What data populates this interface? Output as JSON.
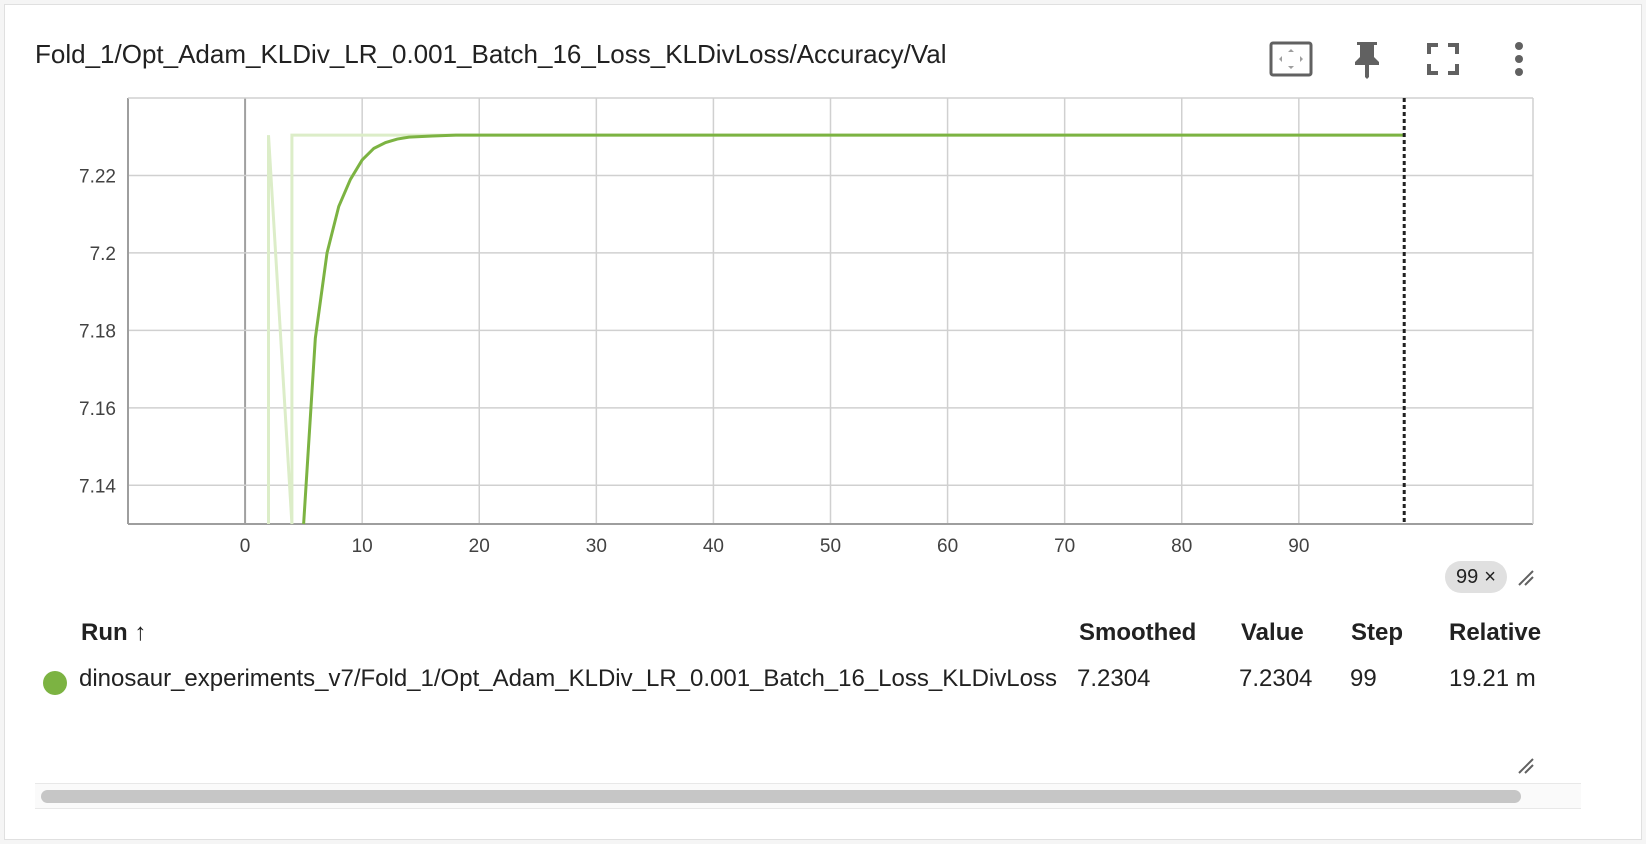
{
  "card": {
    "title": "Fold_1/Opt_Adam_KLDiv_LR_0.001_Batch_16_Loss_KLDivLoss/Accuracy/Val"
  },
  "toolbar": {
    "icons": [
      "fit-domain-icon",
      "pin-icon",
      "fullscreen-icon",
      "more-vert-icon"
    ]
  },
  "colors": {
    "series": "#7cb342",
    "series_raw": "#dcedc8",
    "grid": "#d0d0d0",
    "axis_zero": "#a0a0a0"
  },
  "chart_data": {
    "type": "line",
    "title": "",
    "xlabel": "",
    "ylabel": "",
    "xlim": [
      -10,
      110
    ],
    "ylim": [
      7.13,
      7.24
    ],
    "x_ticks": [
      "0",
      "10",
      "20",
      "30",
      "40",
      "50",
      "60",
      "70",
      "80",
      "90"
    ],
    "y_ticks": [
      "7.14",
      "7.16",
      "7.18",
      "7.2",
      "7.22"
    ],
    "grid": true,
    "series": [
      {
        "name": "dinosaur_experiments_v7/Fold_1/Opt_Adam_KLDiv_LR_0.001_Batch_16_Loss_KLDivLoss",
        "smoothed": true,
        "x": [
          5,
          6,
          7,
          8,
          9,
          10,
          11,
          12,
          13,
          14,
          16,
          18,
          20,
          30,
          40,
          50,
          60,
          70,
          80,
          90,
          99
        ],
        "y": [
          7.13,
          7.178,
          7.2,
          7.212,
          7.219,
          7.224,
          7.227,
          7.2285,
          7.2294,
          7.2299,
          7.2302,
          7.2304,
          7.2304,
          7.2304,
          7.2304,
          7.2304,
          7.2304,
          7.2304,
          7.2304,
          7.2304,
          7.2304
        ]
      },
      {
        "name": "dinosaur_experiments_v7/Fold_1/Opt_Adam_KLDiv_LR_0.001_Batch_16_Loss_KLDivLoss",
        "smoothed": false,
        "x": [
          2,
          2,
          4,
          4,
          99
        ],
        "y": [
          7.13,
          7.2304,
          7.13,
          7.2304,
          7.2304
        ]
      }
    ],
    "step_marker": {
      "x": 99,
      "label": "99",
      "close": "×"
    }
  },
  "table": {
    "headers": {
      "run": "Run ↑",
      "smoothed": "Smoothed",
      "value": "Value",
      "step": "Step",
      "relative": "Relative"
    },
    "rows": [
      {
        "run": "dinosaur_experiments_v7/Fold_1/Opt_Adam_KLDiv_LR_0.001_Batch_16_Loss_KLDivLoss",
        "smoothed": "7.2304",
        "value": "7.2304",
        "step": "99",
        "relative": "19.21 m"
      }
    ]
  }
}
